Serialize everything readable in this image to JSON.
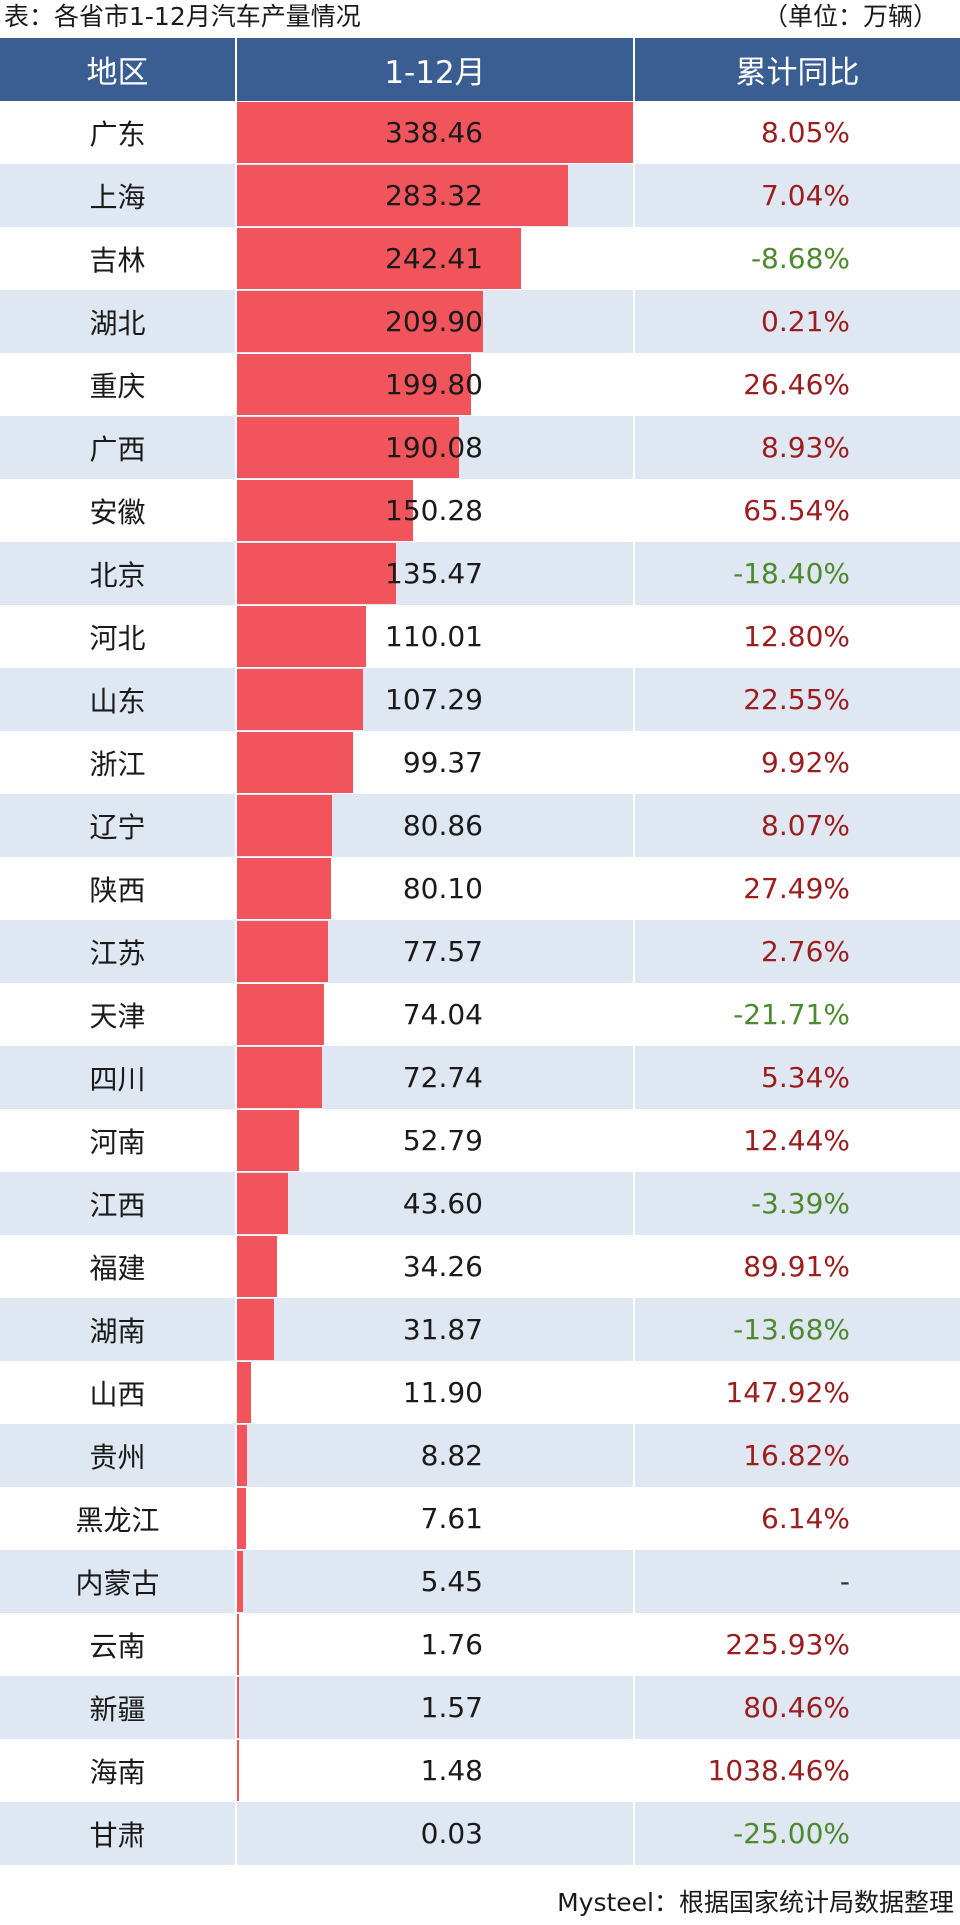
{
  "caption": {
    "title": "表：各省市1-12月汽车产量情况",
    "unit": "（单位：万辆）"
  },
  "source": "Mysteel：根据国家统计局数据整理",
  "colors": {
    "header_bg": "#3b5e92",
    "bar": "#f2545b",
    "stripe": "#dfe7f3",
    "positive": "#9c1d1d",
    "negative": "#4d8a2d"
  },
  "chart_data": {
    "type": "table",
    "columns": [
      "地区",
      "1-12月",
      "累计同比"
    ],
    "max_value": 338.46,
    "rows": [
      {
        "region": "广东",
        "value": 338.46,
        "yoy": "8.05%"
      },
      {
        "region": "上海",
        "value": 283.32,
        "yoy": "7.04%"
      },
      {
        "region": "吉林",
        "value": 242.41,
        "yoy": "-8.68%"
      },
      {
        "region": "湖北",
        "value": 209.9,
        "yoy": "0.21%"
      },
      {
        "region": "重庆",
        "value": 199.8,
        "yoy": "26.46%"
      },
      {
        "region": "广西",
        "value": 190.08,
        "yoy": "8.93%"
      },
      {
        "region": "安徽",
        "value": 150.28,
        "yoy": "65.54%"
      },
      {
        "region": "北京",
        "value": 135.47,
        "yoy": "-18.40%"
      },
      {
        "region": "河北",
        "value": 110.01,
        "yoy": "12.80%"
      },
      {
        "region": "山东",
        "value": 107.29,
        "yoy": "22.55%"
      },
      {
        "region": "浙江",
        "value": 99.37,
        "yoy": "9.92%"
      },
      {
        "region": "辽宁",
        "value": 80.86,
        "yoy": "8.07%"
      },
      {
        "region": "陕西",
        "value": 80.1,
        "yoy": "27.49%"
      },
      {
        "region": "江苏",
        "value": 77.57,
        "yoy": "2.76%"
      },
      {
        "region": "天津",
        "value": 74.04,
        "yoy": "-21.71%"
      },
      {
        "region": "四川",
        "value": 72.74,
        "yoy": "5.34%"
      },
      {
        "region": "河南",
        "value": 52.79,
        "yoy": "12.44%"
      },
      {
        "region": "江西",
        "value": 43.6,
        "yoy": "-3.39%"
      },
      {
        "region": "福建",
        "value": 34.26,
        "yoy": "89.91%"
      },
      {
        "region": "湖南",
        "value": 31.87,
        "yoy": "-13.68%"
      },
      {
        "region": "山西",
        "value": 11.9,
        "yoy": "147.92%"
      },
      {
        "region": "贵州",
        "value": 8.82,
        "yoy": "16.82%"
      },
      {
        "region": "黑龙江",
        "value": 7.61,
        "yoy": "6.14%"
      },
      {
        "region": "内蒙古",
        "value": 5.45,
        "yoy": "-"
      },
      {
        "region": "云南",
        "value": 1.76,
        "yoy": "225.93%"
      },
      {
        "region": "新疆",
        "value": 1.57,
        "yoy": "80.46%"
      },
      {
        "region": "海南",
        "value": 1.48,
        "yoy": "1038.46%"
      },
      {
        "region": "甘肃",
        "value": 0.03,
        "yoy": "-25.00%"
      }
    ]
  }
}
